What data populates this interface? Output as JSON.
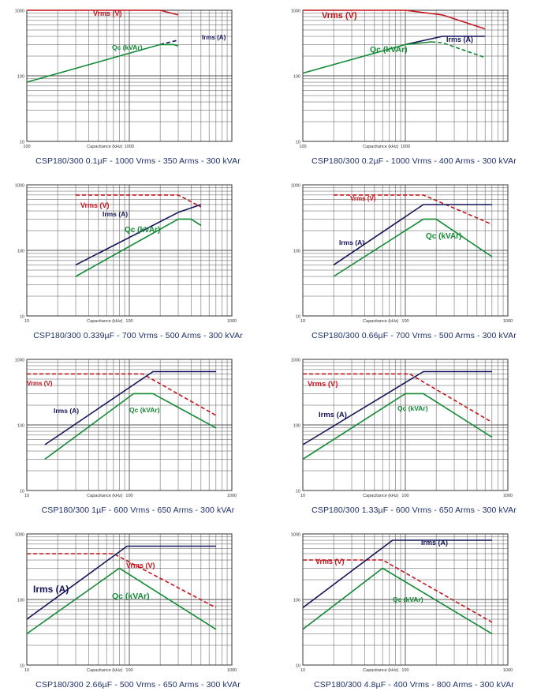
{
  "colors": {
    "vrms": "#c4141c",
    "irms": "#14145a",
    "qc": "#118a33",
    "grid": "#555555",
    "caption": "#1f2f6a"
  },
  "chart_data": [
    {
      "type": "line",
      "xscale": "log",
      "yscale": "log",
      "xlim": [
        100,
        10000
      ],
      "ylim": [
        10,
        1000
      ],
      "x_ticks": [
        "100",
        "1000"
      ],
      "y_ticks": [
        "1000",
        "100",
        "10"
      ],
      "xlabel": "Capacitance (kHz)",
      "title": "CSP180/300 0.1µF - 1000 Vrms - 350 Arms - 300 kVAr",
      "series": [
        {
          "name": "Vrms (V)",
          "dash": false,
          "x": [
            100,
            2000,
            3000
          ],
          "y": [
            1000,
            1000,
            850
          ]
        },
        {
          "name": "Irms (A)",
          "dash": true,
          "x": [
            2000,
            3000
          ],
          "y": [
            300,
            350
          ]
        },
        {
          "name": "Qc (kVAr)",
          "dash": false,
          "x": [
            100,
            2000,
            2700,
            3000
          ],
          "y": [
            80,
            300,
            300,
            285
          ]
        }
      ]
    },
    {
      "type": "line",
      "xscale": "log",
      "yscale": "log",
      "xlim": [
        100,
        10000
      ],
      "ylim": [
        10,
        1000
      ],
      "x_ticks": [
        "100",
        "1000"
      ],
      "y_ticks": [
        "1000",
        "100",
        "10"
      ],
      "xlabel": "Capacitance (kHz)",
      "title": "CSP180/300 0.2µF - 1000 Vrms - 400 Arms - 300 kVAr",
      "series": [
        {
          "name": "Vrms (V)",
          "dash": false,
          "x": [
            100,
            1000,
            2300,
            6000
          ],
          "y": [
            1000,
            1000,
            850,
            520
          ]
        },
        {
          "name": "Irms (A)",
          "dash": false,
          "x": [
            1000,
            2300,
            6000
          ],
          "y": [
            300,
            400,
            400
          ]
        },
        {
          "name": "Qc (kVAr)",
          "dash": false,
          "x": [
            100,
            1000,
            1800
          ],
          "y": [
            110,
            300,
            330
          ]
        },
        {
          "name": "",
          "dash": true,
          "x": [
            1800,
            2300,
            6000
          ],
          "y": [
            330,
            320,
            190
          ]
        }
      ]
    },
    {
      "type": "line",
      "xscale": "log",
      "yscale": "log",
      "xlim": [
        10,
        1000
      ],
      "ylim": [
        10,
        1000
      ],
      "x_ticks": [
        "10",
        "100",
        "1000"
      ],
      "y_ticks": [
        "1000",
        "100",
        "10"
      ],
      "xlabel": "Capacitance (kHz)",
      "title": "CSP180/300 0.339µF - 700 Vrms - 500 Arms - 300 kVAr",
      "series": [
        {
          "name": "Vrms (V)",
          "dash": true,
          "x": [
            30,
            300,
            500
          ],
          "y": [
            700,
            700,
            460
          ]
        },
        {
          "name": "Irms (A)",
          "dash": false,
          "x": [
            30,
            300,
            500
          ],
          "y": [
            60,
            380,
            500
          ]
        },
        {
          "name": "Qc (kVAr)",
          "dash": false,
          "x": [
            30,
            300,
            400,
            500
          ],
          "y": [
            40,
            300,
            300,
            240
          ]
        }
      ]
    },
    {
      "type": "line",
      "xscale": "log",
      "yscale": "log",
      "xlim": [
        10,
        1000
      ],
      "ylim": [
        10,
        1000
      ],
      "x_ticks": [
        "10",
        "100",
        "1000"
      ],
      "y_ticks": [
        "1000",
        "100",
        "10"
      ],
      "xlabel": "Capacitance (kHz)",
      "title": "CSP180/300 0.66µF - 700 Vrms - 500 Arms - 300 kVAr",
      "series": [
        {
          "name": "Vrms (V)",
          "dash": true,
          "x": [
            20,
            150,
            700
          ],
          "y": [
            700,
            700,
            250
          ]
        },
        {
          "name": "Irms (A)",
          "dash": false,
          "x": [
            20,
            150,
            700
          ],
          "y": [
            60,
            500,
            500
          ]
        },
        {
          "name": "Qc (kVAr)",
          "dash": false,
          "x": [
            20,
            150,
            200,
            700
          ],
          "y": [
            40,
            300,
            300,
            80
          ]
        }
      ]
    },
    {
      "type": "line",
      "xscale": "log",
      "yscale": "log",
      "xlim": [
        10,
        1000
      ],
      "ylim": [
        10,
        1000
      ],
      "x_ticks": [
        "10",
        "100",
        "1000"
      ],
      "y_ticks": [
        "1000",
        "100",
        "10"
      ],
      "xlabel": "Capacitance (kHz)",
      "title": "CSP180/300 1µF - 600 Vrms - 650 Arms - 300 kVAr",
      "series": [
        {
          "name": "Vrms (V)",
          "dash": true,
          "x": [
            10,
            135,
            700
          ],
          "y": [
            600,
            600,
            140
          ]
        },
        {
          "name": "Irms (A)",
          "dash": false,
          "x": [
            15,
            170,
            700
          ],
          "y": [
            50,
            650,
            650
          ]
        },
        {
          "name": "Qc (kVAr)",
          "dash": false,
          "x": [
            15,
            110,
            170,
            700
          ],
          "y": [
            30,
            300,
            300,
            90
          ]
        }
      ]
    },
    {
      "type": "line",
      "xscale": "log",
      "yscale": "log",
      "xlim": [
        10,
        1000
      ],
      "ylim": [
        10,
        1000
      ],
      "x_ticks": [
        "10",
        "100",
        "1000"
      ],
      "y_ticks": [
        "1000",
        "100",
        "10"
      ],
      "xlabel": "Capacitance (kHz)",
      "title": "CSP180/300 1.33µF - 600 Vrms - 650 Arms - 300 kVAr",
      "series": [
        {
          "name": "Vrms (V)",
          "dash": true,
          "x": [
            10,
            110,
            700
          ],
          "y": [
            600,
            600,
            110
          ]
        },
        {
          "name": "Irms (A)",
          "dash": false,
          "x": [
            10,
            150,
            700
          ],
          "y": [
            50,
            650,
            650
          ]
        },
        {
          "name": "Qc (kVAr)",
          "dash": false,
          "x": [
            10,
            100,
            150,
            700
          ],
          "y": [
            30,
            300,
            300,
            65
          ]
        }
      ]
    },
    {
      "type": "line",
      "xscale": "log",
      "yscale": "log",
      "xlim": [
        10,
        1000
      ],
      "ylim": [
        10,
        1000
      ],
      "x_ticks": [
        "10",
        "100",
        "1000"
      ],
      "y_ticks": [
        "1000",
        "100",
        "10"
      ],
      "xlabel": "Capacitance (kHz)",
      "title": "CSP180/300 2.66µF - 500 Vrms - 650 Arms - 300 kVAr",
      "series": [
        {
          "name": "Vrms (V)",
          "dash": true,
          "x": [
            10,
            70,
            700
          ],
          "y": [
            500,
            500,
            75
          ]
        },
        {
          "name": "Irms (A)",
          "dash": false,
          "x": [
            10,
            95,
            700
          ],
          "y": [
            50,
            650,
            650
          ]
        },
        {
          "name": "Qc (kVAr)",
          "dash": false,
          "x": [
            10,
            80,
            700
          ],
          "y": [
            30,
            300,
            35
          ]
        }
      ]
    },
    {
      "type": "line",
      "xscale": "log",
      "yscale": "log",
      "xlim": [
        10,
        1000
      ],
      "ylim": [
        10,
        1000
      ],
      "x_ticks": [
        "10",
        "100",
        "1000"
      ],
      "y_ticks": [
        "1000",
        "100",
        "10"
      ],
      "xlabel": "Capacitance (kHz)",
      "title": "CSP180/300 4.8µF - 400 Vrms - 800 Arms - 300 kVAr",
      "series": [
        {
          "name": "Vrms (V)",
          "dash": true,
          "x": [
            10,
            60,
            700
          ],
          "y": [
            400,
            400,
            45
          ]
        },
        {
          "name": "Irms (A)",
          "dash": false,
          "x": [
            10,
            75,
            700
          ],
          "y": [
            75,
            800,
            800
          ]
        },
        {
          "name": "Qc (kVAr)",
          "dash": false,
          "x": [
            10,
            60,
            700
          ],
          "y": [
            35,
            300,
            30
          ]
        }
      ]
    }
  ]
}
